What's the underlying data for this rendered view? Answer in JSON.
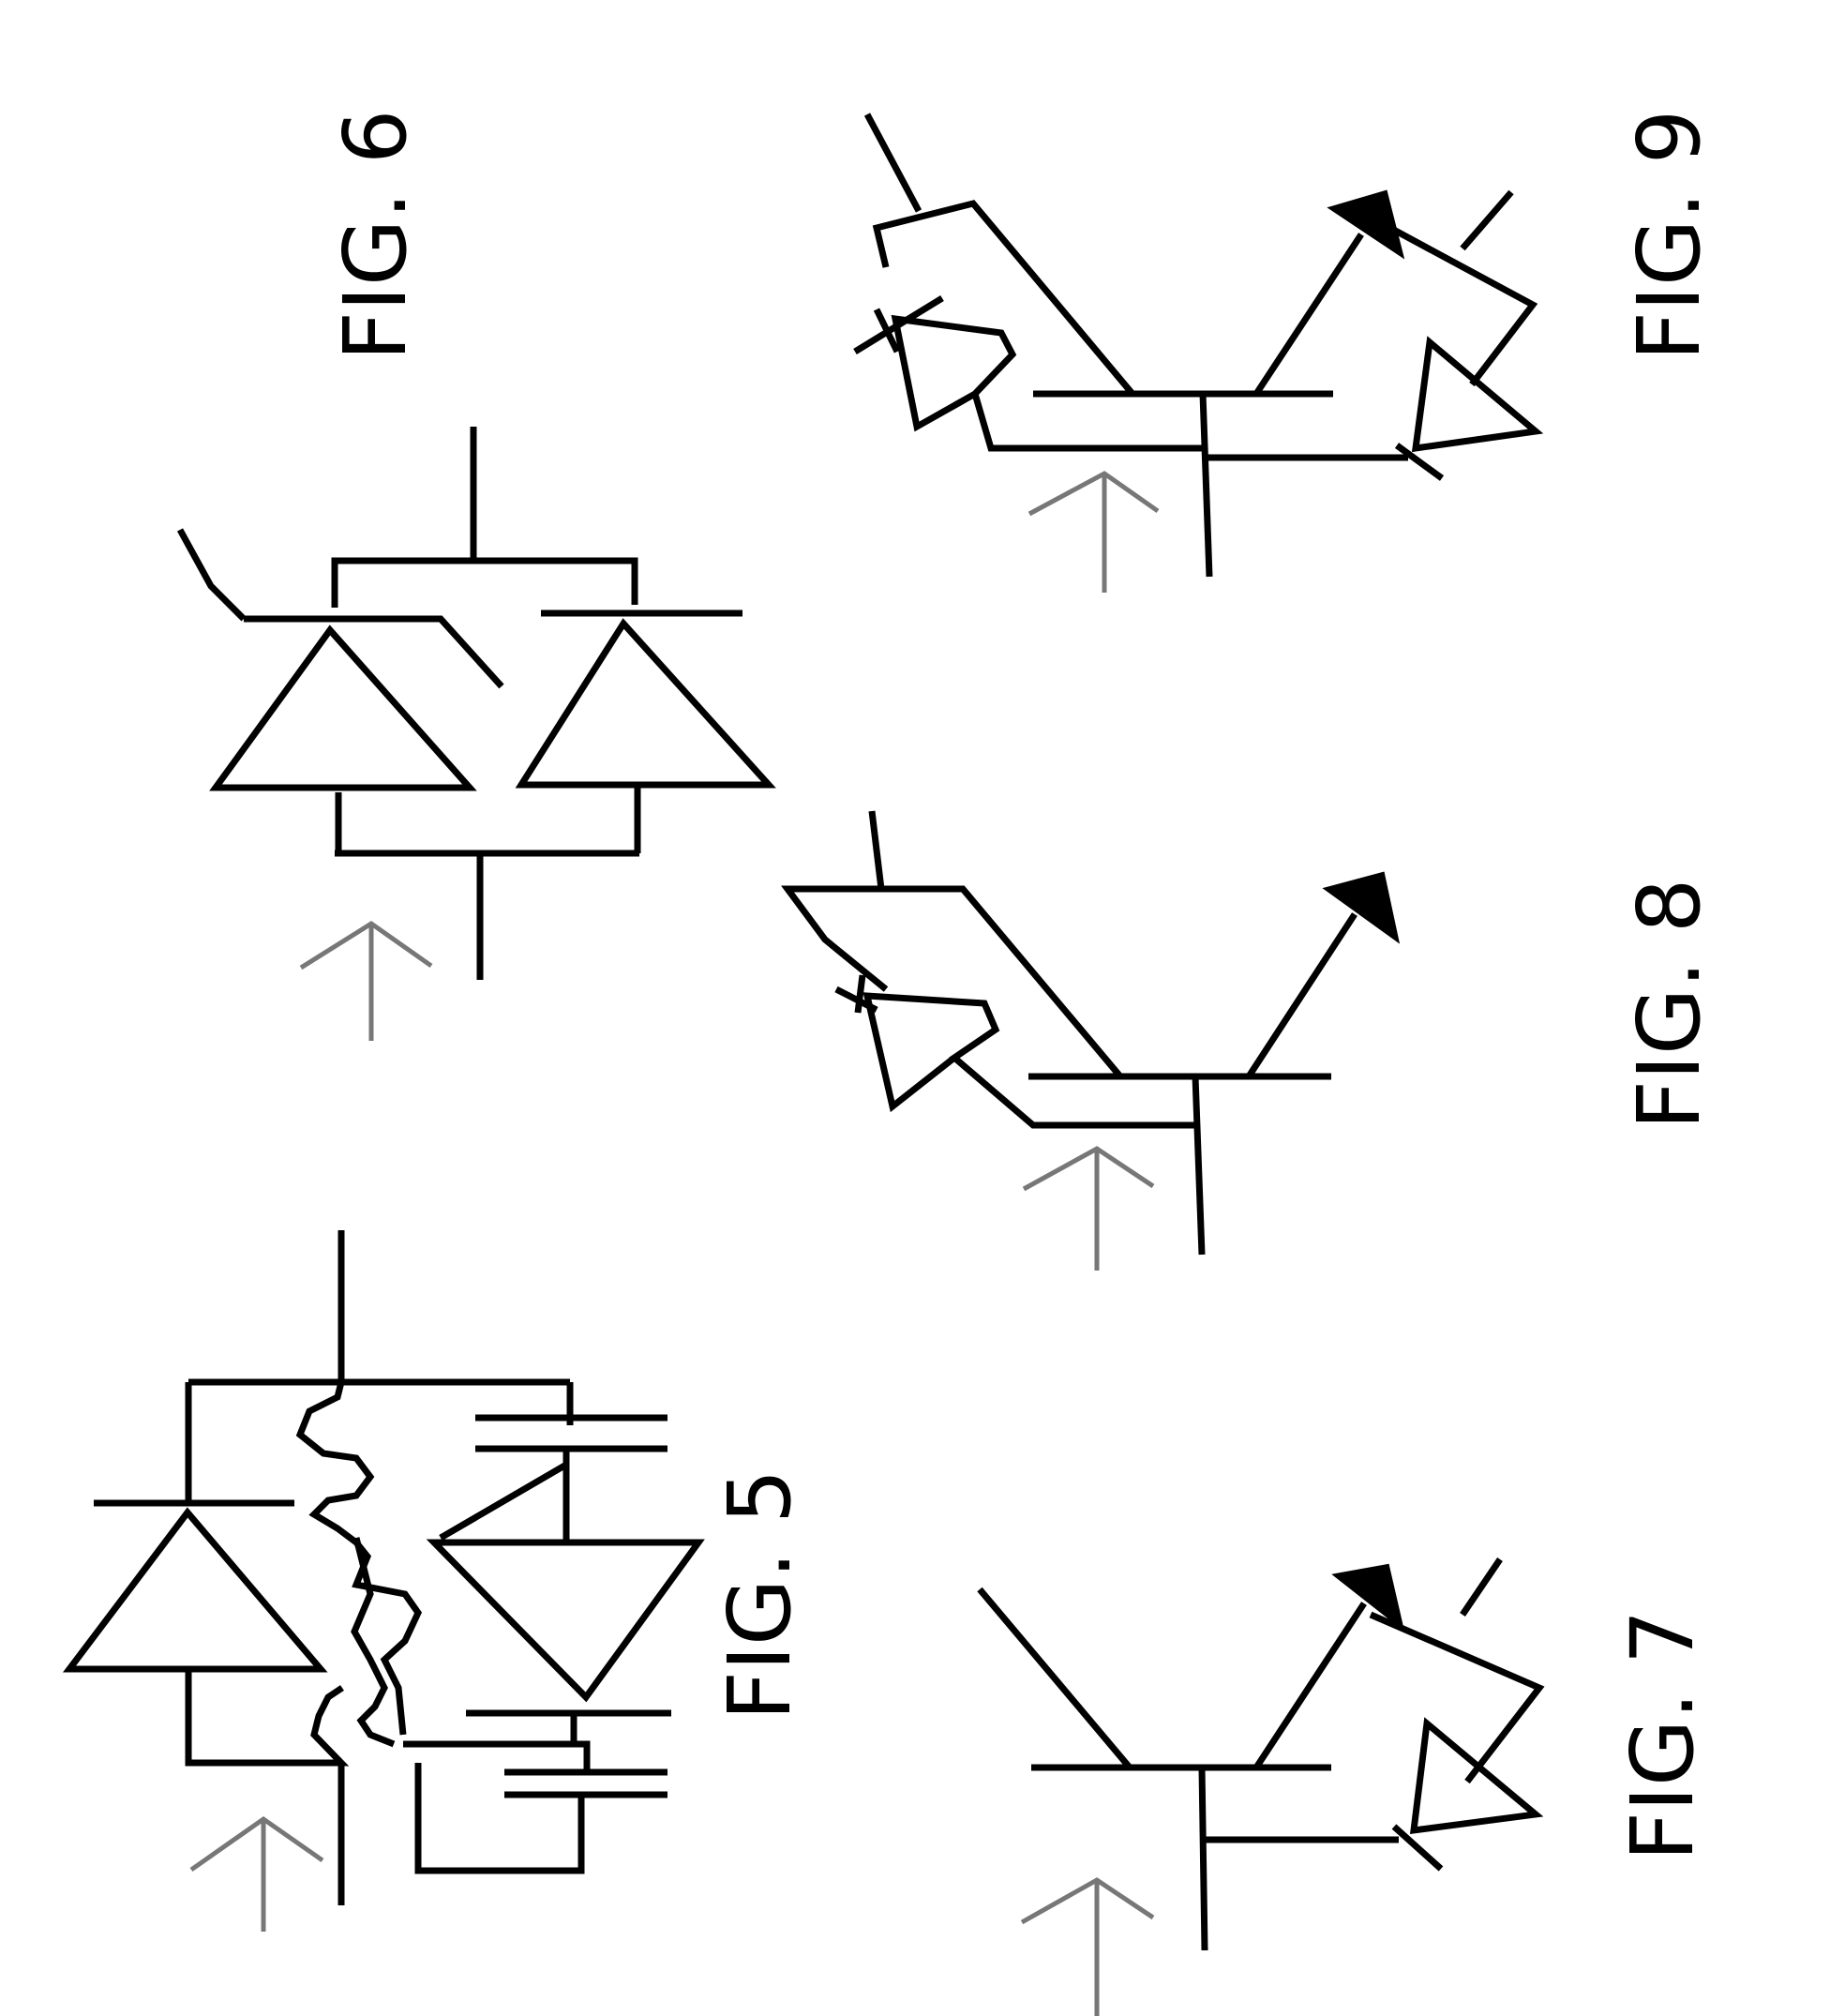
{
  "figures": [
    {
      "id": "fig5",
      "label": "FIG. 5"
    },
    {
      "id": "fig6",
      "label": "FIG. 6"
    },
    {
      "id": "fig7",
      "label": "FIG. 7"
    },
    {
      "id": "fig8",
      "label": "FIG. 8"
    },
    {
      "id": "fig9",
      "label": "FIG. 9"
    }
  ],
  "colors": {
    "line": "#000000",
    "orientation_arrow": "#777777",
    "background": "#ffffff"
  }
}
